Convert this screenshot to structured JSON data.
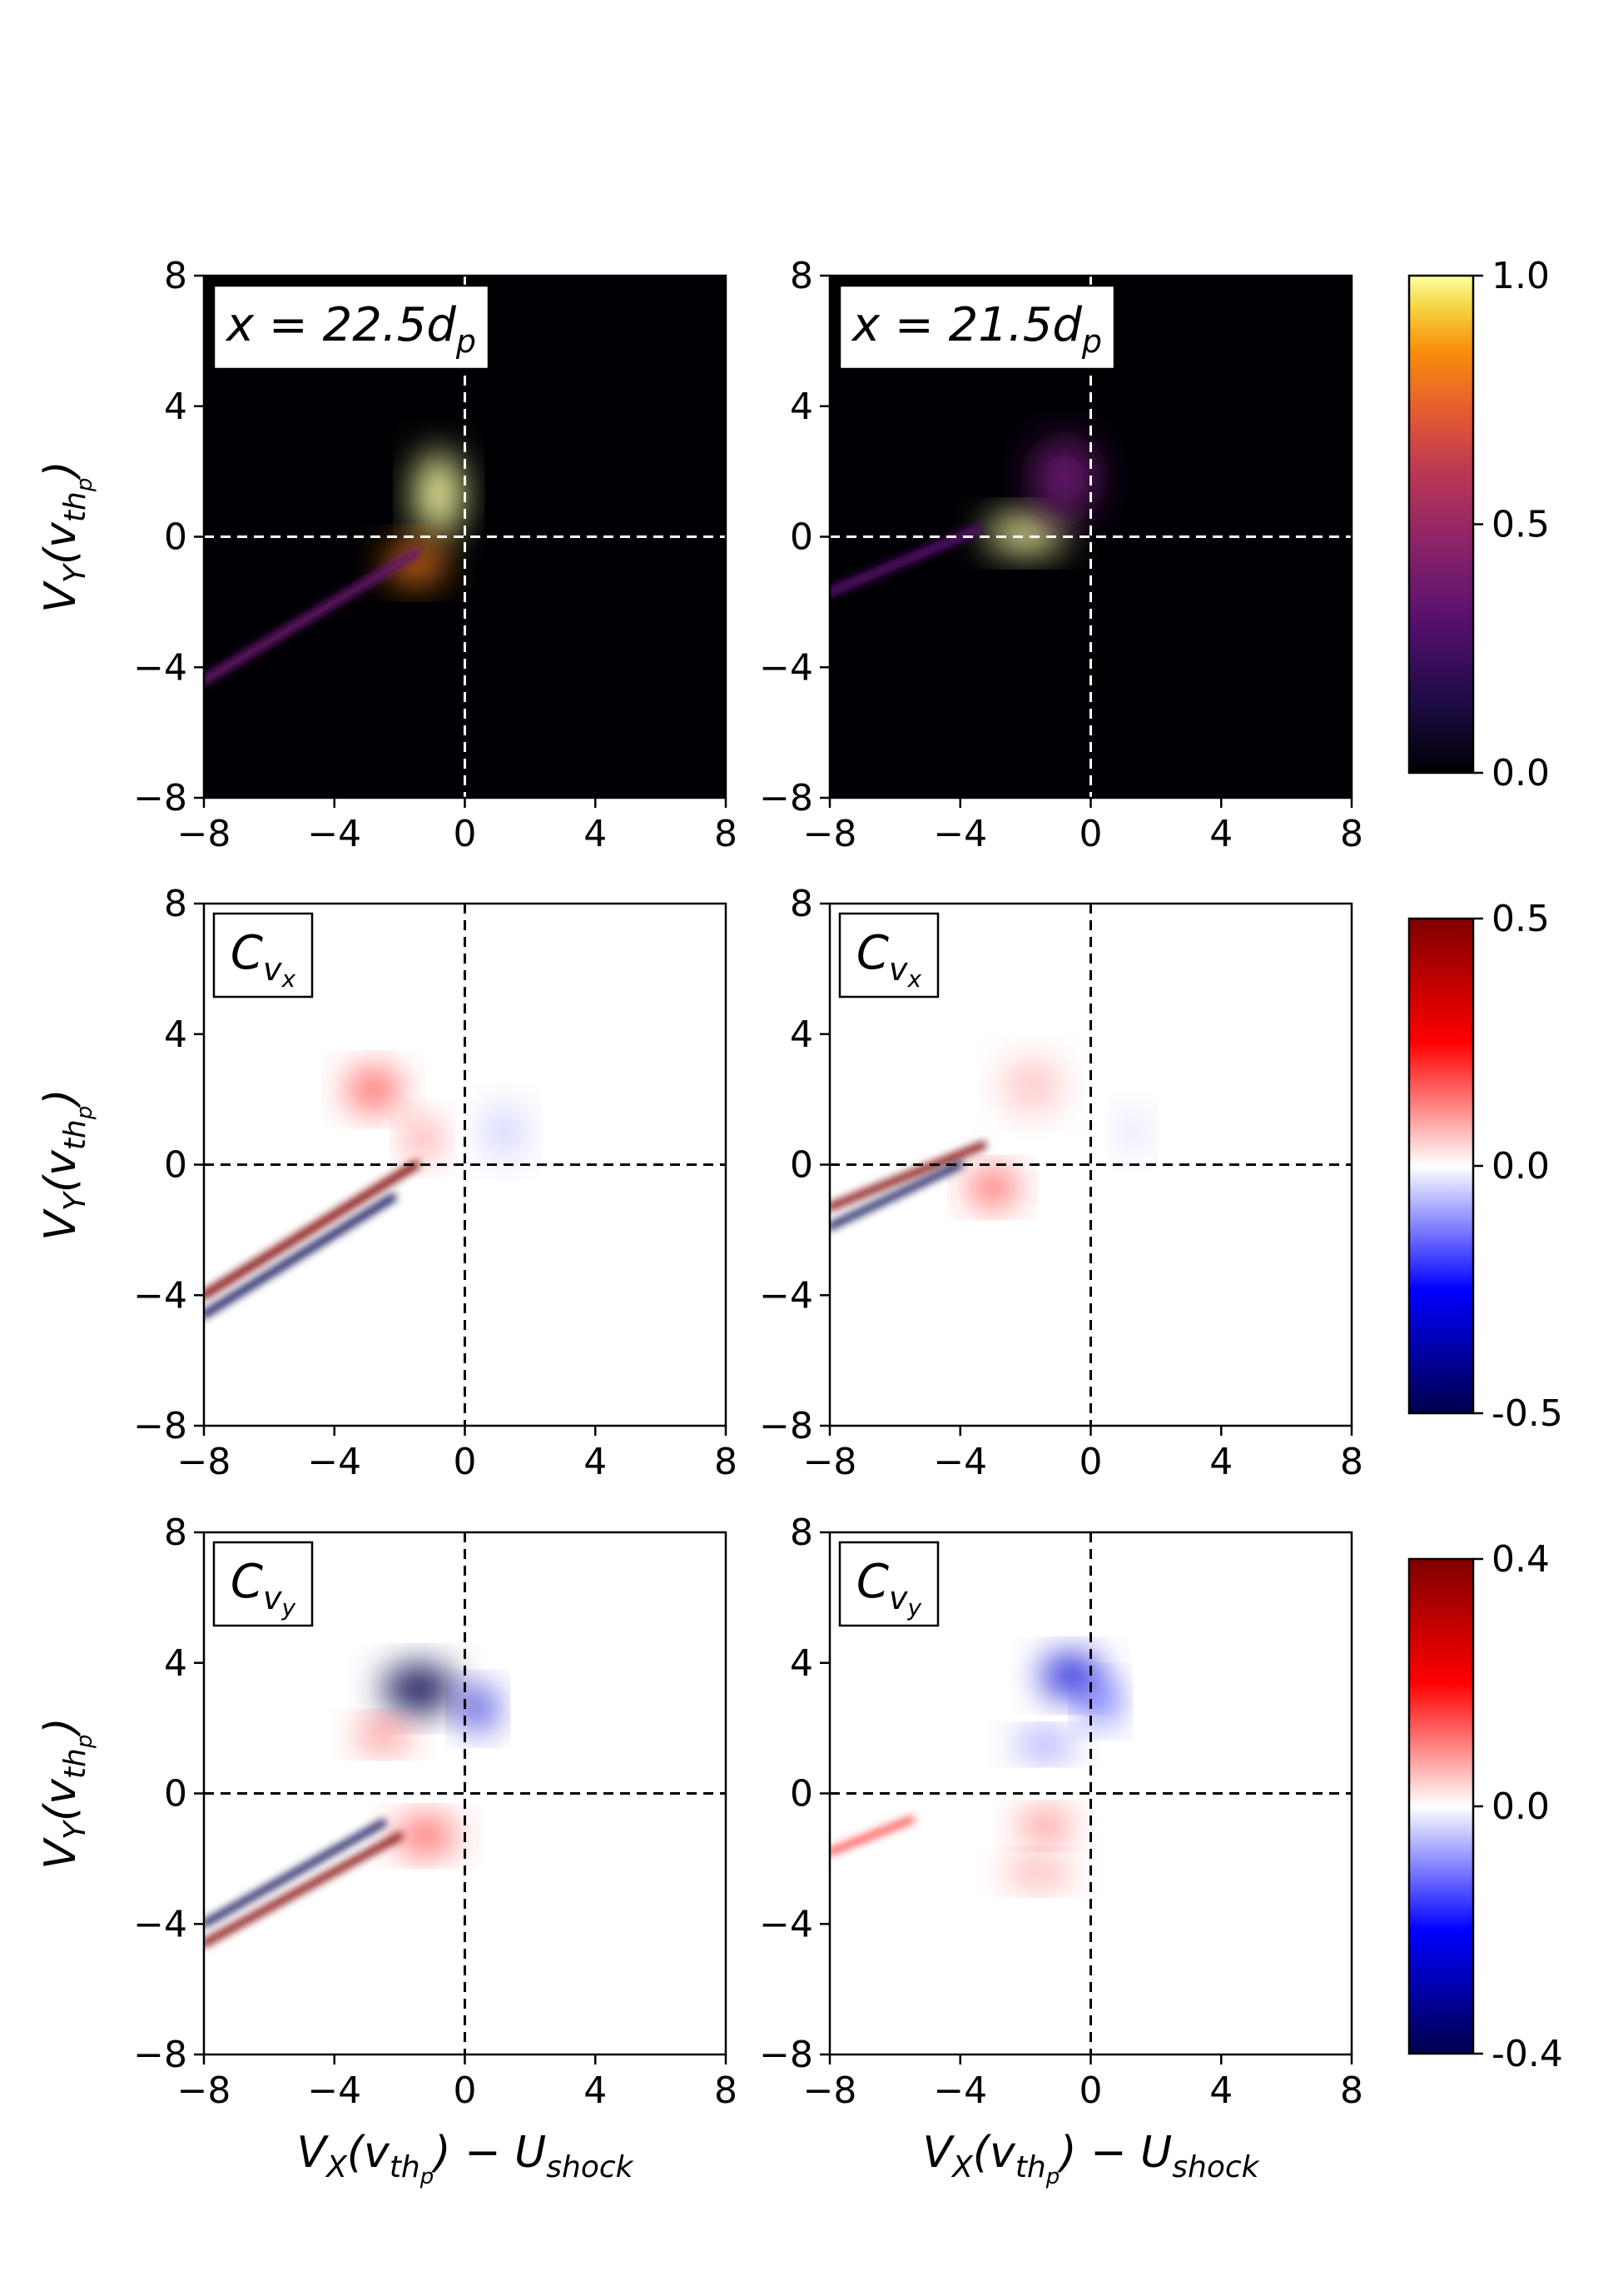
{
  "figure": {
    "panels": [
      {
        "id": "r1c1",
        "annotation": "x = 22.5d",
        "annotation_sub": "p",
        "row": 0,
        "col": 0
      },
      {
        "id": "r1c2",
        "annotation": "x = 21.5d",
        "annotation_sub": "p",
        "row": 0,
        "col": 1
      },
      {
        "id": "r2c1",
        "annotation": "C",
        "annotation_sub": "vx",
        "row": 1,
        "col": 0
      },
      {
        "id": "r2c2",
        "annotation": "C",
        "annotation_sub": "vx",
        "row": 1,
        "col": 1
      },
      {
        "id": "r3c1",
        "annotation": "C",
        "annotation_sub": "vy",
        "row": 2,
        "col": 0
      },
      {
        "id": "r3c2",
        "annotation": "C",
        "annotation_sub": "vy",
        "row": 2,
        "col": 1
      }
    ],
    "ylabel": {
      "main": "V",
      "sub1": "Y",
      "paren": "(v",
      "sub2": "th",
      "sub3": "p",
      "close": ")"
    },
    "xlabel": {
      "main": "V",
      "sub1": "X",
      "paren": "(v",
      "sub2": "th",
      "sub3": "p",
      "close": ") − U",
      "sub4": "shock"
    }
  },
  "chart_data": [
    {
      "type": "heatmap",
      "title": "x = 22.5d_p",
      "xlabel": "V_X(v_th_p) − U_shock",
      "ylabel": "V_Y(v_th_p)",
      "xlim": [
        -8,
        8
      ],
      "ylim": [
        -8,
        8
      ],
      "xticks": [
        "−8",
        "−4",
        "0",
        "4",
        "8"
      ],
      "yticks": [
        "8",
        "4",
        "0",
        "−4",
        "−8"
      ],
      "colormap": "inferno",
      "vmin": 0.0,
      "vmax": 1.0,
      "colorbar_ticks": [
        "1.0",
        "0.5",
        "0.0"
      ],
      "features": [
        {
          "kind": "blob",
          "x": -0.8,
          "y": 1.3,
          "sx": 0.7,
          "sy": 1.3,
          "value": 1.0
        },
        {
          "kind": "blob",
          "x": -1.5,
          "y": -0.8,
          "sx": 0.9,
          "sy": 0.6,
          "value": 0.8
        },
        {
          "kind": "beam",
          "from": [
            -8,
            -4.4
          ],
          "to": [
            -1.5,
            -0.5
          ],
          "width": 0.3,
          "value": 0.35
        }
      ],
      "crosshair": {
        "x": 0,
        "y": 0,
        "color": "#ffffff"
      }
    },
    {
      "type": "heatmap",
      "title": "x = 21.5d_p",
      "xlim": [
        -8,
        8
      ],
      "ylim": [
        -8,
        8
      ],
      "xticks": [
        "−8",
        "−4",
        "0",
        "4",
        "8"
      ],
      "yticks": [
        "8",
        "4",
        "0",
        "−4",
        "−8"
      ],
      "colormap": "inferno",
      "vmin": 0.0,
      "vmax": 1.0,
      "features": [
        {
          "kind": "blob",
          "x": -2.0,
          "y": 0.1,
          "sx": 1.2,
          "sy": 0.55,
          "value": 1.0
        },
        {
          "kind": "blob",
          "x": -0.8,
          "y": 1.8,
          "sx": 1.0,
          "sy": 1.2,
          "value": 0.35
        },
        {
          "kind": "beam",
          "from": [
            -8,
            -1.7
          ],
          "to": [
            -3.5,
            0.2
          ],
          "width": 0.3,
          "value": 0.3
        }
      ],
      "crosshair": {
        "x": 0,
        "y": 0,
        "color": "#ffffff"
      }
    },
    {
      "type": "heatmap",
      "title": "C_vx",
      "xlim": [
        -8,
        8
      ],
      "ylim": [
        -8,
        8
      ],
      "xticks": [
        "−8",
        "−4",
        "0",
        "4",
        "8"
      ],
      "yticks": [
        "8",
        "4",
        "0",
        "−4",
        "−8"
      ],
      "colormap": "seismic",
      "vmin": -0.5,
      "vmax": 0.5,
      "colorbar_ticks": [
        "0.5",
        "0.0",
        "-0.5"
      ],
      "features": [
        {
          "kind": "blob",
          "x": -2.8,
          "y": 2.3,
          "sx": 0.8,
          "sy": 0.6,
          "value": 0.18
        },
        {
          "kind": "blob",
          "x": -1.3,
          "y": 0.8,
          "sx": 0.5,
          "sy": 0.6,
          "value": 0.12
        },
        {
          "kind": "blob",
          "x": 1.2,
          "y": 1.0,
          "sx": 0.6,
          "sy": 0.8,
          "value": -0.05
        },
        {
          "kind": "beam",
          "from": [
            -8,
            -4.0
          ],
          "to": [
            -1.5,
            0.0
          ],
          "width": 0.25,
          "value": 0.5
        },
        {
          "kind": "beam",
          "from": [
            -8,
            -4.6
          ],
          "to": [
            -2.2,
            -1.0
          ],
          "width": 0.22,
          "value": -0.5
        }
      ],
      "crosshair": {
        "x": 0,
        "y": 0,
        "color": "#000000"
      }
    },
    {
      "type": "heatmap",
      "title": "C_vx",
      "xlim": [
        -8,
        8
      ],
      "ylim": [
        -8,
        8
      ],
      "xticks": [
        "−8",
        "−4",
        "0",
        "4",
        "8"
      ],
      "yticks": [
        "8",
        "4",
        "0",
        "−4",
        "−8"
      ],
      "colormap": "seismic",
      "vmin": -0.5,
      "vmax": 0.5,
      "features": [
        {
          "kind": "blob",
          "x": -1.8,
          "y": 2.4,
          "sx": 0.9,
          "sy": 0.8,
          "value": 0.06
        },
        {
          "kind": "blob",
          "x": -3.0,
          "y": -0.7,
          "sx": 0.7,
          "sy": 0.5,
          "value": 0.2
        },
        {
          "kind": "blob",
          "x": 1.3,
          "y": 1.0,
          "sx": 0.4,
          "sy": 0.6,
          "value": -0.04
        },
        {
          "kind": "beam",
          "from": [
            -8,
            -1.3
          ],
          "to": [
            -3.3,
            0.6
          ],
          "width": 0.22,
          "value": 0.5
        },
        {
          "kind": "beam",
          "from": [
            -8,
            -1.9
          ],
          "to": [
            -4.0,
            0.0
          ],
          "width": 0.2,
          "value": -0.5
        }
      ],
      "crosshair": {
        "x": 0,
        "y": 0,
        "color": "#000000"
      }
    },
    {
      "type": "heatmap",
      "title": "C_vy",
      "xlim": [
        -8,
        8
      ],
      "ylim": [
        -8,
        8
      ],
      "xticks": [
        "−8",
        "−4",
        "0",
        "4",
        "8"
      ],
      "yticks": [
        "8",
        "4",
        "0",
        "−4",
        "−8"
      ],
      "colormap": "seismic",
      "vmin": -0.4,
      "vmax": 0.4,
      "colorbar_ticks": [
        "0.4",
        "0.0",
        "-0.4"
      ],
      "features": [
        {
          "kind": "blob",
          "x": -1.4,
          "y": 3.2,
          "sx": 1.1,
          "sy": 0.7,
          "value": -0.4
        },
        {
          "kind": "blob",
          "x": 0.4,
          "y": 2.6,
          "sx": 0.5,
          "sy": 0.6,
          "value": -0.25
        },
        {
          "kind": "blob",
          "x": -2.5,
          "y": 1.8,
          "sx": 0.8,
          "sy": 0.4,
          "value": 0.12
        },
        {
          "kind": "blob",
          "x": -1.2,
          "y": -1.3,
          "sx": 0.9,
          "sy": 0.5,
          "value": 0.15
        },
        {
          "kind": "beam",
          "from": [
            -8,
            -4.6
          ],
          "to": [
            -2.0,
            -1.3
          ],
          "width": 0.22,
          "value": 0.4
        },
        {
          "kind": "beam",
          "from": [
            -8,
            -4.0
          ],
          "to": [
            -2.5,
            -0.9
          ],
          "width": 0.2,
          "value": -0.4
        }
      ],
      "crosshair": {
        "x": 0,
        "y": 0,
        "color": "#000000"
      }
    },
    {
      "type": "heatmap",
      "title": "C_vy",
      "xlim": [
        -8,
        8
      ],
      "ylim": [
        -8,
        8
      ],
      "xticks": [
        "−8",
        "−4",
        "0",
        "4",
        "8"
      ],
      "yticks": [
        "8",
        "4",
        "0",
        "−4",
        "−8"
      ],
      "colormap": "seismic",
      "vmin": -0.4,
      "vmax": 0.4,
      "features": [
        {
          "kind": "blob",
          "x": -0.6,
          "y": 3.6,
          "sx": 0.9,
          "sy": 0.6,
          "value": -0.25
        },
        {
          "kind": "blob",
          "x": 0.3,
          "y": 2.8,
          "sx": 0.5,
          "sy": 0.6,
          "value": -0.15
        },
        {
          "kind": "blob",
          "x": -1.4,
          "y": 1.5,
          "sx": 0.9,
          "sy": 0.35,
          "value": -0.1
        },
        {
          "kind": "blob",
          "x": -1.4,
          "y": -1.0,
          "sx": 0.8,
          "sy": 0.4,
          "value": 0.12
        },
        {
          "kind": "blob",
          "x": -1.6,
          "y": -2.4,
          "sx": 1.0,
          "sy": 0.4,
          "value": 0.08
        },
        {
          "kind": "beam",
          "from": [
            -8,
            -1.8
          ],
          "to": [
            -5.5,
            -0.8
          ],
          "width": 0.2,
          "value": 0.15
        }
      ],
      "crosshair": {
        "x": 0,
        "y": 0,
        "color": "#000000"
      }
    }
  ]
}
